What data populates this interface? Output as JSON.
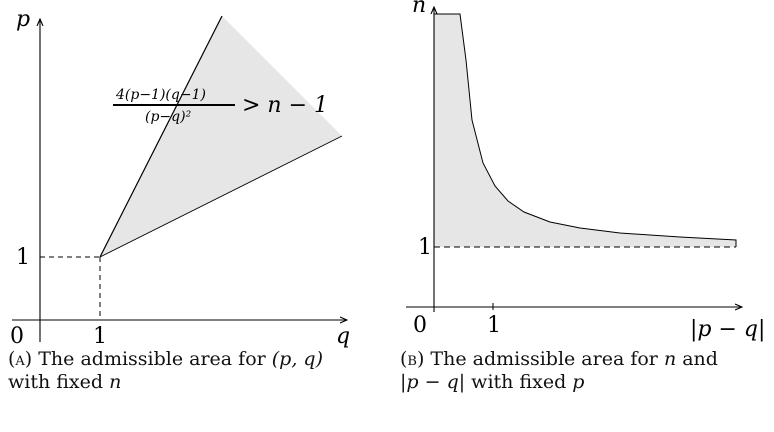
{
  "left_panel": {
    "y_axis_label": "p",
    "x_axis_label": "q",
    "origin_label": "0",
    "x_tick_label": "1",
    "y_tick_label": "1",
    "inequality": {
      "numerator": "4(p−1)(q−1)",
      "denominator": "(p−q)²",
      "rest": "> n − 1"
    },
    "region_fill": "#e6e6e6"
  },
  "right_panel": {
    "y_axis_label": "n",
    "x_axis_label": "|p − q|",
    "origin_label": "0",
    "x_tick_label": "1",
    "y_tick_label": "1",
    "region_fill": "#e6e6e6"
  },
  "captions": {
    "a": {
      "tag": "(a)",
      "line1_text": " The admissible area for ",
      "line1_math": "(p, q)",
      "line2_text": "with fixed ",
      "line2_math": "n"
    },
    "b": {
      "tag": "(b)",
      "line1_text": " The admissible area for ",
      "line1_math": "n",
      "line1_tail": " and",
      "line2_math": "|p − q|",
      "line2_text": " with fixed ",
      "line2_math2": "p"
    }
  }
}
